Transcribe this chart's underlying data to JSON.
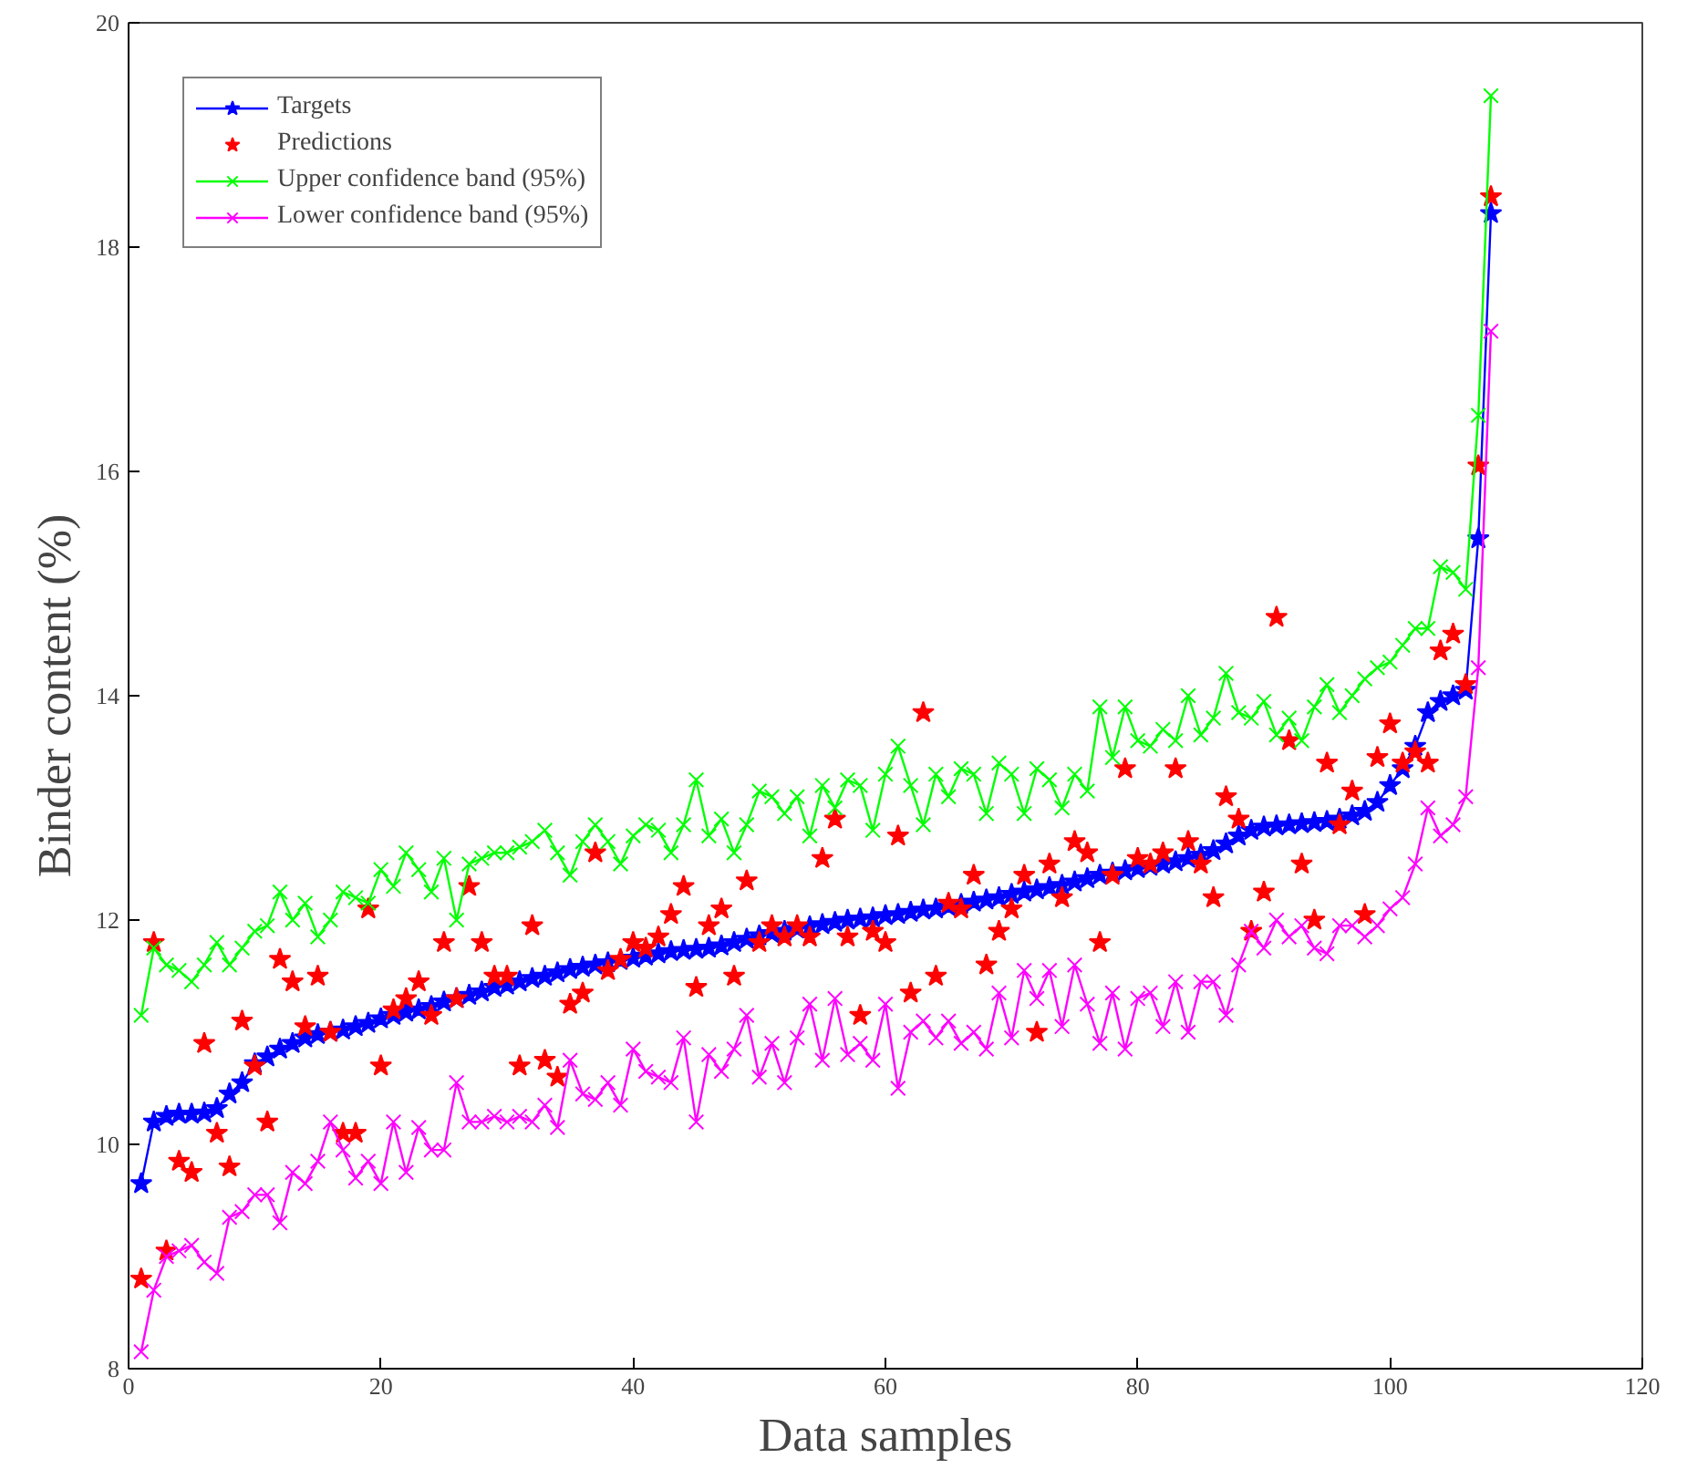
{
  "chart_data": {
    "type": "line",
    "xlabel": "Data samples",
    "ylabel": "Binder content (%)",
    "xlim": [
      0,
      120
    ],
    "ylim": [
      8,
      20
    ],
    "xticks": [
      0,
      20,
      40,
      60,
      80,
      100,
      120
    ],
    "yticks": [
      8,
      10,
      12,
      14,
      16,
      18,
      20
    ],
    "grid": false,
    "legend": "top left",
    "line_style": "solid",
    "x": [
      1,
      2,
      3,
      4,
      5,
      6,
      7,
      8,
      9,
      10,
      11,
      12,
      13,
      14,
      15,
      16,
      17,
      18,
      19,
      20,
      21,
      22,
      23,
      24,
      25,
      26,
      27,
      28,
      29,
      30,
      31,
      32,
      33,
      34,
      35,
      36,
      37,
      38,
      39,
      40,
      41,
      42,
      43,
      44,
      45,
      46,
      47,
      48,
      49,
      50,
      51,
      52,
      53,
      54,
      55,
      56,
      57,
      58,
      59,
      60,
      61,
      62,
      63,
      64,
      65,
      66,
      67,
      68,
      69,
      70,
      71,
      72,
      73,
      74,
      75,
      76,
      77,
      78,
      79,
      80,
      81,
      82,
      83,
      84,
      85,
      86,
      87,
      88,
      89,
      90,
      91,
      92,
      93,
      94,
      95,
      96,
      97,
      98,
      99,
      100,
      101,
      102,
      103,
      104,
      105,
      106,
      107,
      108
    ],
    "series": [
      {
        "name": "Targets",
        "type": "line",
        "marker": "star",
        "color": "#0000ff",
        "values": [
          9.65,
          10.2,
          10.25,
          10.27,
          10.27,
          10.28,
          10.32,
          10.45,
          10.55,
          10.72,
          10.78,
          10.85,
          10.9,
          10.95,
          10.98,
          11.0,
          11.02,
          11.05,
          11.08,
          11.12,
          11.15,
          11.18,
          11.2,
          11.23,
          11.27,
          11.3,
          11.33,
          11.36,
          11.4,
          11.42,
          11.45,
          11.48,
          11.5,
          11.53,
          11.56,
          11.58,
          11.6,
          11.62,
          11.64,
          11.66,
          11.68,
          11.7,
          11.72,
          11.73,
          11.74,
          11.75,
          11.77,
          11.8,
          11.83,
          11.86,
          11.88,
          11.9,
          11.92,
          11.94,
          11.96,
          11.98,
          12.0,
          12.01,
          12.02,
          12.04,
          12.05,
          12.07,
          12.09,
          12.1,
          12.12,
          12.14,
          12.16,
          12.18,
          12.2,
          12.23,
          12.25,
          12.27,
          12.29,
          12.31,
          12.34,
          12.37,
          12.4,
          12.42,
          12.44,
          12.46,
          12.48,
          12.5,
          12.52,
          12.55,
          12.58,
          12.62,
          12.68,
          12.75,
          12.8,
          12.83,
          12.84,
          12.85,
          12.86,
          12.87,
          12.88,
          12.9,
          12.93,
          12.97,
          13.05,
          13.2,
          13.35,
          13.55,
          13.85,
          13.95,
          14.0,
          14.05,
          15.4,
          18.3
        ]
      },
      {
        "name": "Predictions",
        "type": "scatter",
        "marker": "star",
        "color": "#ff0000",
        "values": [
          8.8,
          11.8,
          9.05,
          9.85,
          9.75,
          10.9,
          10.1,
          9.8,
          11.1,
          10.7,
          10.2,
          11.65,
          11.45,
          11.05,
          11.5,
          11.0,
          10.1,
          10.1,
          12.1,
          10.7,
          11.2,
          11.3,
          11.45,
          11.15,
          11.8,
          11.3,
          12.3,
          11.8,
          11.5,
          11.5,
          10.7,
          11.95,
          10.75,
          10.6,
          11.25,
          11.35,
          12.6,
          11.55,
          11.65,
          11.8,
          11.75,
          11.85,
          12.05,
          12.3,
          11.4,
          11.95,
          12.1,
          11.5,
          12.35,
          11.8,
          11.95,
          11.85,
          11.95,
          11.85,
          12.55,
          12.9,
          11.85,
          11.15,
          11.9,
          11.8,
          12.75,
          11.35,
          13.85,
          11.5,
          12.15,
          12.1,
          12.4,
          11.6,
          11.9,
          12.1,
          12.4,
          11.0,
          12.5,
          12.2,
          12.7,
          12.6,
          11.8,
          12.4,
          13.35,
          12.55,
          12.5,
          12.6,
          13.35,
          12.7,
          12.5,
          12.2,
          13.1,
          12.9,
          11.9,
          12.25,
          14.7,
          13.6,
          12.5,
          12.0,
          13.4,
          12.85,
          13.15,
          12.05,
          13.45,
          13.75,
          13.4,
          13.5,
          13.4,
          14.4,
          14.55,
          14.1,
          16.05,
          18.45
        ]
      },
      {
        "name": "Upper confidence band (95%)",
        "type": "line",
        "marker": "cross",
        "color": "#00ff00",
        "values": [
          11.15,
          11.75,
          11.6,
          11.55,
          11.45,
          11.6,
          11.8,
          11.6,
          11.75,
          11.9,
          11.95,
          12.25,
          12.0,
          12.15,
          11.85,
          12.0,
          12.25,
          12.2,
          12.15,
          12.45,
          12.3,
          12.6,
          12.45,
          12.25,
          12.55,
          12.0,
          12.5,
          12.55,
          12.6,
          12.6,
          12.65,
          12.7,
          12.8,
          12.6,
          12.4,
          12.7,
          12.85,
          12.7,
          12.5,
          12.75,
          12.85,
          12.8,
          12.6,
          12.85,
          13.25,
          12.75,
          12.9,
          12.6,
          12.85,
          13.15,
          13.1,
          12.95,
          13.1,
          12.75,
          13.2,
          13.0,
          13.25,
          13.2,
          12.8,
          13.3,
          13.55,
          13.2,
          12.85,
          13.3,
          13.1,
          13.35,
          13.3,
          12.95,
          13.4,
          13.3,
          12.95,
          13.35,
          13.25,
          13.0,
          13.3,
          13.15,
          13.9,
          13.45,
          13.9,
          13.6,
          13.55,
          13.7,
          13.6,
          14.0,
          13.65,
          13.8,
          14.2,
          13.85,
          13.8,
          13.95,
          13.65,
          13.8,
          13.6,
          13.9,
          14.1,
          13.85,
          14.0,
          14.15,
          14.25,
          14.3,
          14.45,
          14.6,
          14.6,
          15.15,
          15.1,
          14.95,
          16.5,
          19.35
        ]
      },
      {
        "name": "Lower confidence band (95%)",
        "type": "line",
        "marker": "cross",
        "color": "#ff00ff",
        "values": [
          8.15,
          8.7,
          9.0,
          9.05,
          9.1,
          8.95,
          8.85,
          9.35,
          9.4,
          9.55,
          9.55,
          9.3,
          9.75,
          9.65,
          9.85,
          10.2,
          9.95,
          9.7,
          9.85,
          9.65,
          10.2,
          9.75,
          10.15,
          9.95,
          9.95,
          10.55,
          10.2,
          10.2,
          10.25,
          10.2,
          10.25,
          10.2,
          10.35,
          10.15,
          10.75,
          10.45,
          10.4,
          10.55,
          10.35,
          10.85,
          10.65,
          10.6,
          10.55,
          10.95,
          10.2,
          10.8,
          10.65,
          10.85,
          11.15,
          10.6,
          10.9,
          10.55,
          10.95,
          11.25,
          10.75,
          11.3,
          10.8,
          10.9,
          10.75,
          11.25,
          10.5,
          11.0,
          11.1,
          10.95,
          11.1,
          10.9,
          11.0,
          10.85,
          11.35,
          10.95,
          11.55,
          11.3,
          11.55,
          11.05,
          11.6,
          11.25,
          10.9,
          11.35,
          10.85,
          11.3,
          11.35,
          11.05,
          11.45,
          11.0,
          11.45,
          11.45,
          11.15,
          11.6,
          11.9,
          11.75,
          12.0,
          11.85,
          11.95,
          11.75,
          11.7,
          11.95,
          11.95,
          11.85,
          11.95,
          12.1,
          12.2,
          12.5,
          13.0,
          12.75,
          12.85,
          13.1,
          14.25,
          17.25
        ]
      }
    ]
  }
}
